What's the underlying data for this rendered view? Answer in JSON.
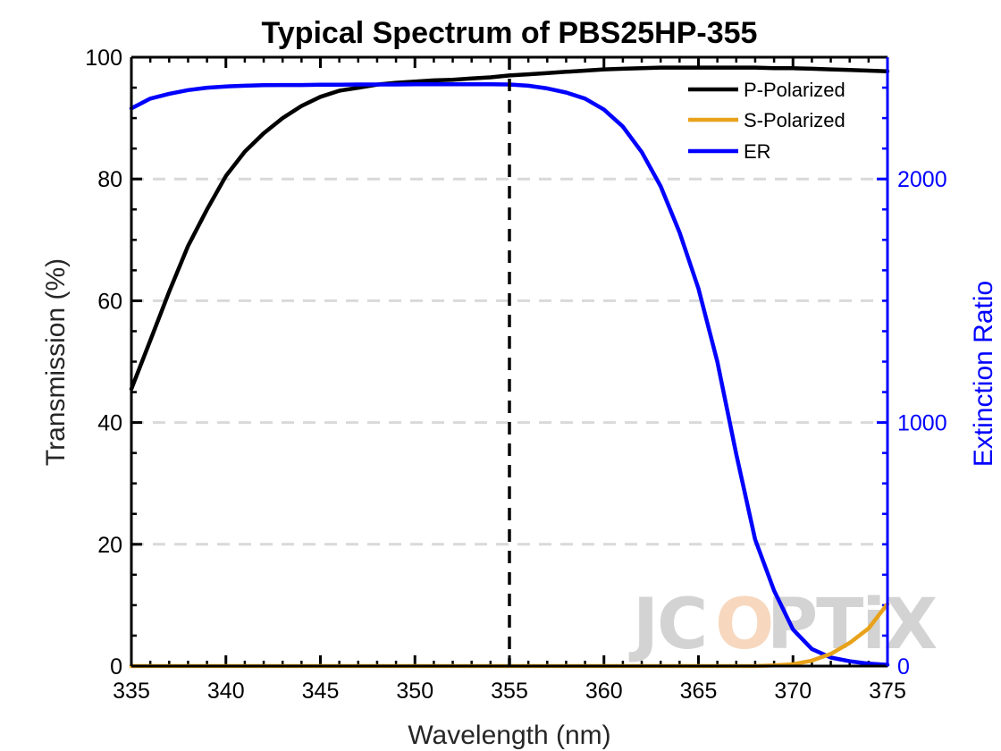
{
  "chart_data": {
    "type": "line",
    "title": "Typical Spectrum of PBS25HP-355",
    "xlabel": "Wavelength (nm)",
    "ylabel": "Transmission (%)",
    "ylabel_right": "Extinction Ratio",
    "xlim": [
      335,
      375
    ],
    "ylim": [
      0,
      100
    ],
    "ylim_right": [
      0,
      2500
    ],
    "x_ticks": [
      "335",
      "340",
      "345",
      "350",
      "355",
      "360",
      "365",
      "370",
      "375"
    ],
    "y_ticks": [
      "0",
      "20",
      "40",
      "60",
      "80",
      "100"
    ],
    "y_ticks_right": [
      "0",
      "1000",
      "2000"
    ],
    "grid": "horizontal dashed",
    "legend_position": "top-right",
    "vertical_marker_x": 355,
    "watermark": "JCOPTIX",
    "colors": {
      "p_polarized": "#000000",
      "s_polarized": "#e8a21a",
      "er": "#0000ff",
      "right_axis": "#0000ff",
      "grid": "#d9d9d9"
    },
    "series": [
      {
        "name": "P-Polarized",
        "axis": "left",
        "x": [
          335,
          336,
          337,
          338,
          339,
          340,
          341,
          342,
          343,
          344,
          345,
          346,
          347,
          348,
          349,
          350,
          351,
          352,
          353,
          354,
          355,
          356,
          357,
          358,
          359,
          360,
          361,
          362,
          363,
          364,
          365,
          366,
          367,
          368,
          369,
          370,
          371,
          372,
          373,
          374,
          375
        ],
        "y": [
          45.5,
          53.5,
          61.5,
          69,
          75,
          80.5,
          84.5,
          87.5,
          90,
          92,
          93.5,
          94.5,
          95,
          95.5,
          95.8,
          96,
          96.2,
          96.3,
          96.5,
          96.7,
          97,
          97.2,
          97.4,
          97.6,
          97.8,
          98,
          98.1,
          98.2,
          98.3,
          98.3,
          98.3,
          98.3,
          98.3,
          98.3,
          98.2,
          98.2,
          98.1,
          98,
          97.9,
          97.8,
          97.7
        ]
      },
      {
        "name": "S-Polarized",
        "axis": "left",
        "x": [
          335,
          340,
          345,
          350,
          355,
          360,
          365,
          368,
          369,
          370,
          371,
          372,
          373,
          374,
          375
        ],
        "y": [
          0,
          0,
          0,
          0,
          0,
          0,
          0,
          0,
          0.1,
          0.3,
          0.9,
          2,
          3.8,
          6.2,
          10.2
        ]
      },
      {
        "name": "ER",
        "axis": "right",
        "x": [
          335,
          336,
          337,
          338,
          339,
          340,
          341,
          342,
          343,
          344,
          345,
          346,
          347,
          348,
          349,
          350,
          351,
          352,
          353,
          354,
          355,
          356,
          357,
          358,
          359,
          360,
          361,
          362,
          363,
          364,
          365,
          366,
          367,
          368,
          369,
          370,
          371,
          372,
          373,
          374,
          375
        ],
        "y": [
          2290,
          2330,
          2350,
          2365,
          2375,
          2380,
          2383,
          2385,
          2386,
          2386,
          2387,
          2387,
          2388,
          2388,
          2388,
          2389,
          2389,
          2389,
          2389,
          2389,
          2388,
          2383,
          2372,
          2355,
          2330,
          2285,
          2215,
          2110,
          1970,
          1780,
          1550,
          1250,
          870,
          520,
          310,
          150,
          70,
          35,
          20,
          10,
          5
        ]
      }
    ]
  }
}
